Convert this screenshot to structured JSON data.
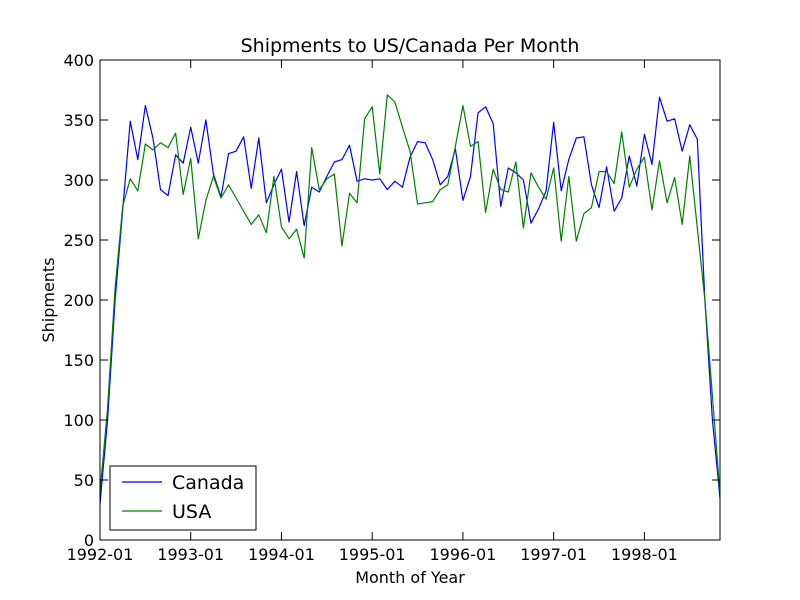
{
  "chart_data": {
    "type": "line",
    "title": "Shipments to US/Canada Per Month",
    "xlabel": "Month of Year",
    "ylabel": "Shipments",
    "ylim": [
      0,
      400
    ],
    "yticks": [
      0,
      50,
      100,
      150,
      200,
      250,
      300,
      350,
      400
    ],
    "xticks": [
      "1992-01",
      "1993-01",
      "1994-01",
      "1995-01",
      "1996-01",
      "1997-01",
      "1998-01"
    ],
    "x_start": "1992-01",
    "x_end": "1998-11",
    "grid": false,
    "legend_position": "lower-left",
    "series": [
      {
        "name": "Canada",
        "color": "#0000ff",
        "values": [
          30,
          100,
          200,
          275,
          349,
          317,
          362,
          335,
          292,
          287,
          321,
          314,
          344,
          314,
          350,
          305,
          286,
          322,
          324,
          336,
          293,
          335,
          281,
          296,
          309,
          265,
          307,
          262,
          294,
          290,
          303,
          315,
          317,
          329,
          299,
          301,
          300,
          301,
          292,
          299,
          294,
          319,
          332,
          331,
          317,
          296,
          303,
          326,
          283,
          303,
          356,
          361,
          347,
          278,
          310,
          306,
          300,
          264,
          276,
          291,
          348,
          291,
          317,
          335,
          336,
          296,
          277,
          311,
          274,
          285,
          320,
          295,
          338,
          313,
          369,
          349,
          351,
          324,
          346,
          334,
          200,
          100,
          35
        ]
      },
      {
        "name": "USA",
        "color": "#008000",
        "values": [
          40,
          110,
          210,
          278,
          301,
          291,
          330,
          325,
          331,
          327,
          339,
          288,
          318,
          251,
          283,
          303,
          285,
          296,
          285,
          274,
          263,
          271,
          256,
          303,
          261,
          251,
          259,
          235,
          327,
          292,
          301,
          305,
          245,
          289,
          281,
          351,
          361,
          305,
          371,
          365,
          344,
          324,
          280,
          281,
          282,
          292,
          296,
          328,
          362,
          328,
          332,
          273,
          309,
          292,
          290,
          315,
          260,
          306,
          294,
          284,
          310,
          249,
          303,
          249,
          272,
          277,
          307,
          307,
          297,
          340,
          294,
          309,
          319,
          275,
          316,
          281,
          302,
          263,
          320,
          260,
          200,
          120,
          38
        ]
      }
    ]
  }
}
